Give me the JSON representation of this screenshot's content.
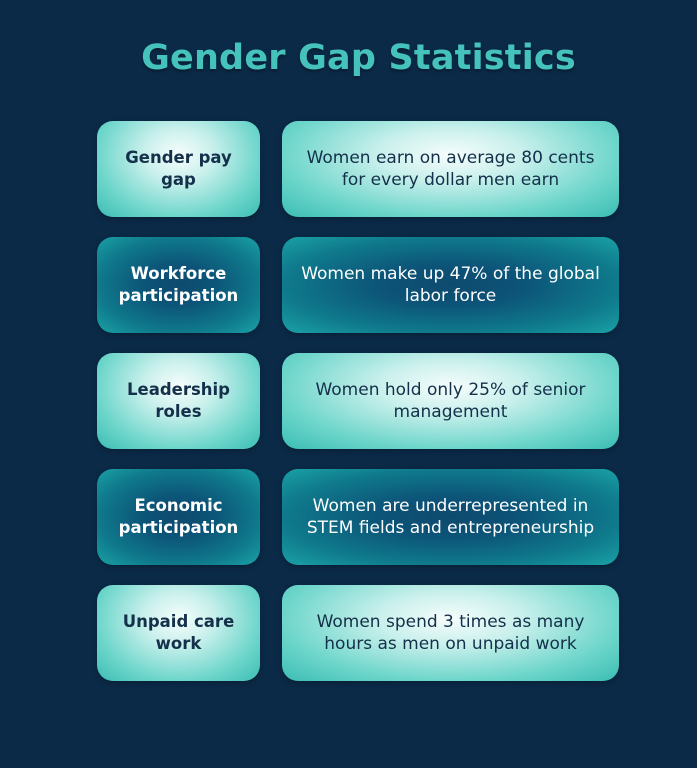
{
  "title": "Gender Gap Statistics",
  "rows": [
    {
      "label": "Gender pay gap",
      "description": "Women earn on average 80 cents for every dollar men earn",
      "style": "light"
    },
    {
      "label": "Workforce participation",
      "description": "Women make up 47% of the global labor force",
      "style": "dark"
    },
    {
      "label": "Leadership roles",
      "description": "Women hold only 25% of senior management",
      "style": "light"
    },
    {
      "label": "Economic participation",
      "description": "Women are underrepresented in STEM fields and entrepreneurship",
      "style": "dark"
    },
    {
      "label": "Unpaid care work",
      "description": "Women spend 3 times as many hours as men on unpaid work",
      "style": "light"
    }
  ],
  "colors": {
    "background": "#0b2a47",
    "title": "#46c2bd",
    "light_text": "#14304a",
    "dark_text": "#ffffff"
  }
}
